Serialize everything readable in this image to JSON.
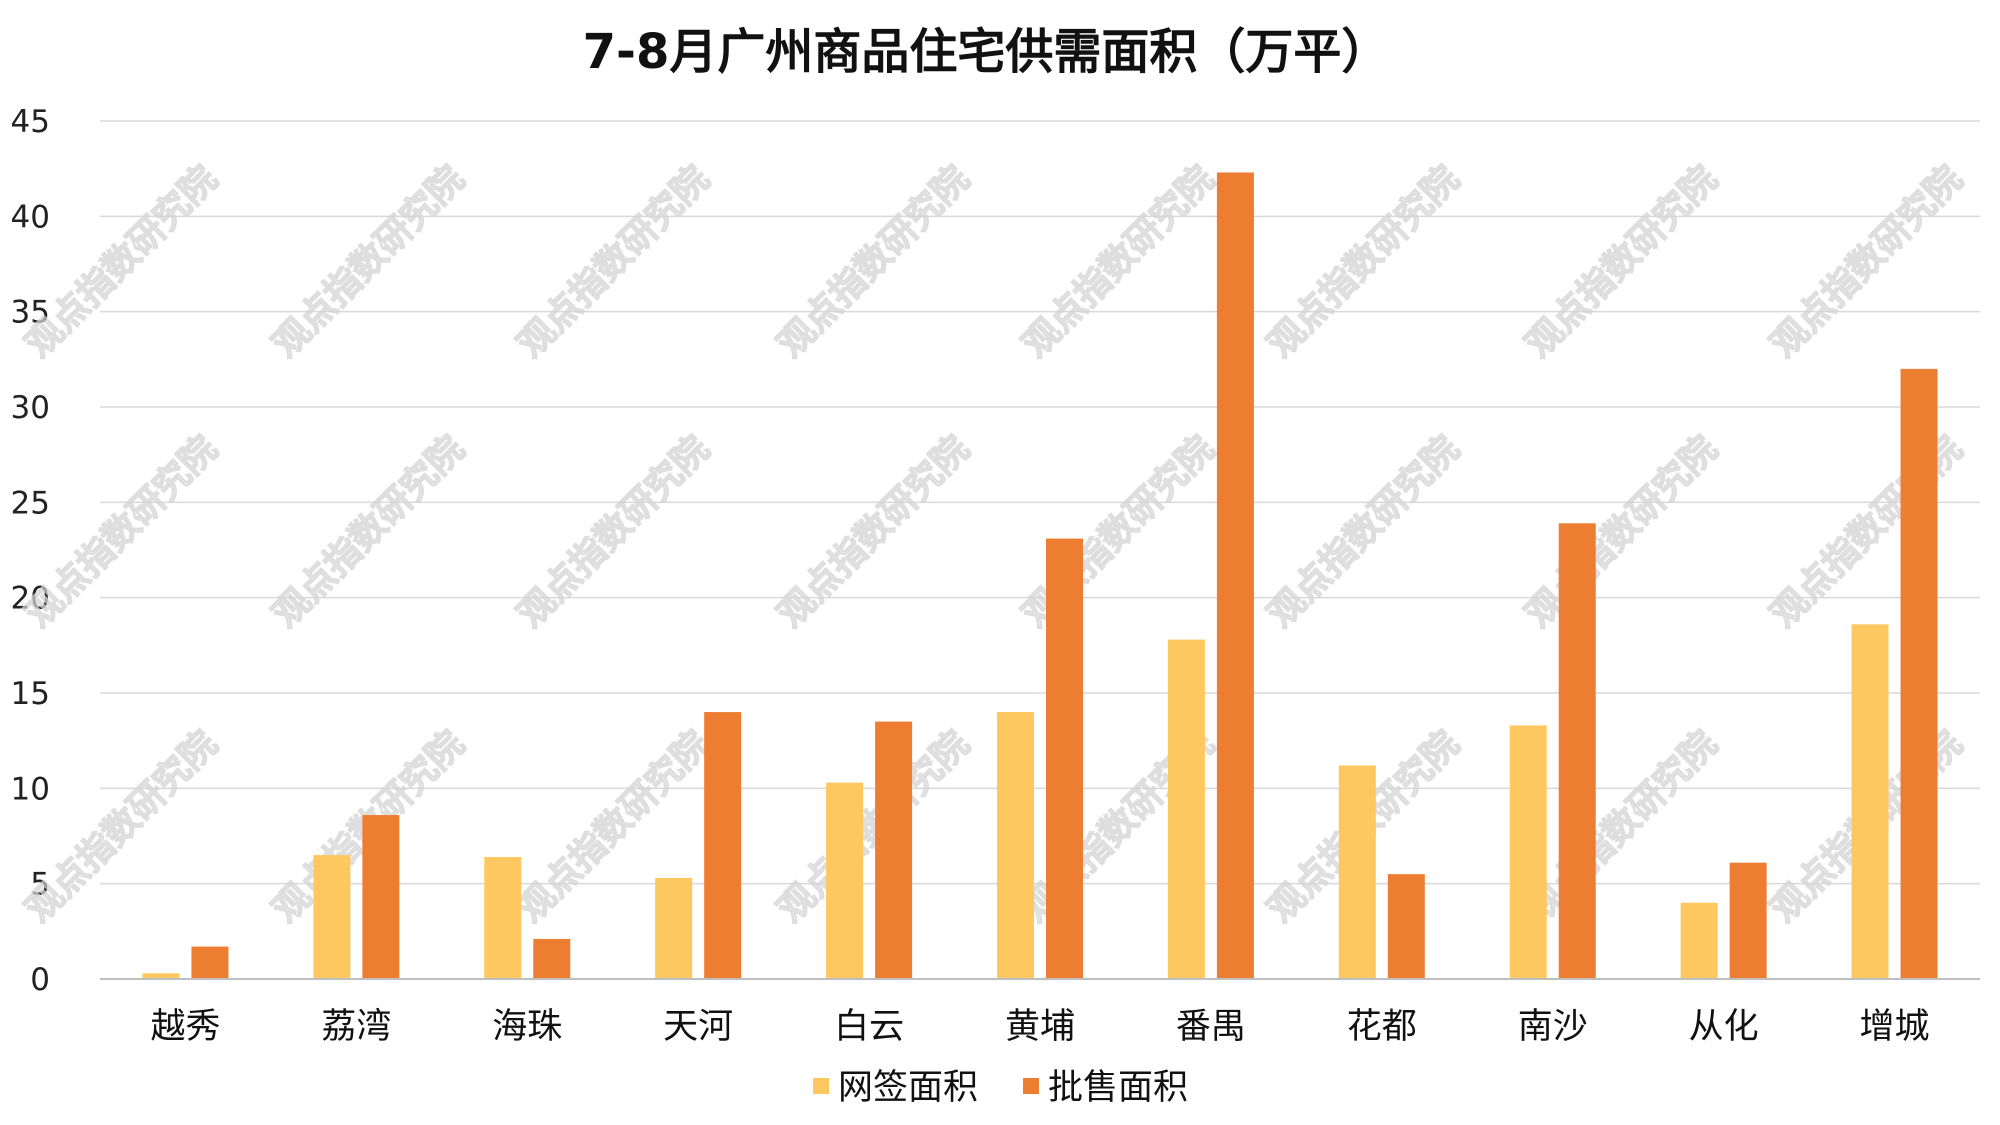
{
  "chart_data": {
    "type": "bar",
    "title": "7-8月广州商品住宅供需面积（万平）",
    "xlabel": "",
    "ylabel": "",
    "ylim": [
      0,
      45
    ],
    "yticks": [
      0,
      5,
      10,
      15,
      20,
      25,
      30,
      35,
      40,
      45
    ],
    "grid": true,
    "legend_position": "bottom",
    "categories": [
      "越秀",
      "荔湾",
      "海珠",
      "天河",
      "白云",
      "黄埔",
      "番禺",
      "花都",
      "南沙",
      "从化",
      "增城"
    ],
    "series": [
      {
        "name": "网签面积",
        "color": "#fdc85f",
        "values": [
          0.3,
          6.5,
          6.4,
          5.3,
          10.3,
          14.0,
          17.8,
          11.2,
          13.3,
          4.0,
          18.6
        ]
      },
      {
        "name": "批售面积",
        "color": "#ed7d31",
        "values": [
          1.7,
          8.6,
          2.1,
          14.0,
          13.5,
          23.1,
          42.3,
          5.5,
          23.9,
          6.1,
          32.0
        ]
      }
    ]
  },
  "watermark": {
    "text": "观点指数研究院",
    "color": "#d4d4d4"
  }
}
